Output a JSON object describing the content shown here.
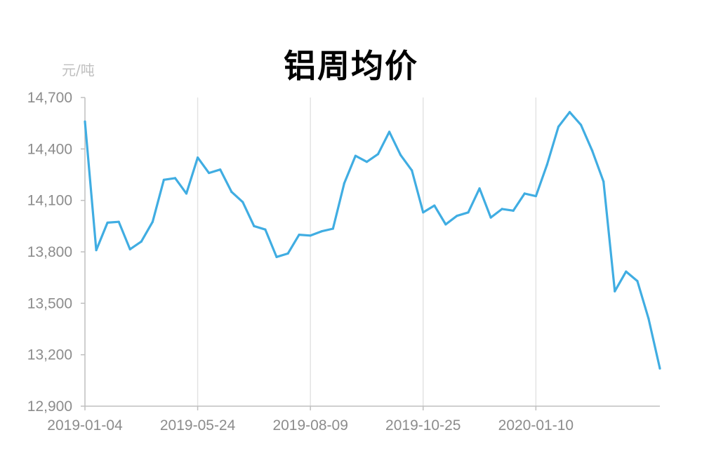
{
  "chart_data": {
    "type": "line",
    "title": "铝周均价",
    "unit_label": "元/吨",
    "x_tick_labels": [
      "2019-01-04",
      "2019-05-24",
      "2019-08-09",
      "2019-10-25",
      "2020-01-10"
    ],
    "y_tick_labels": [
      "12,900",
      "13,200",
      "13,500",
      "13,800",
      "14,100",
      "14,400",
      "14,700"
    ],
    "ylim": [
      12900,
      14700
    ],
    "grid": "vertical",
    "line_color": "#40ade2",
    "series": [
      {
        "values": [
          14560,
          13810,
          13970,
          13975,
          13815,
          13860,
          13975,
          14220,
          14230,
          14140,
          14350,
          14260,
          14280,
          14150,
          14090,
          13950,
          13930,
          13770,
          13790,
          13900,
          13895,
          13920,
          13935,
          14200,
          14360,
          14325,
          14370,
          14500,
          14365,
          14275,
          14030,
          14070,
          13960,
          14010,
          14030,
          14170,
          14000,
          14050,
          14040,
          14140,
          14125,
          14310,
          14530,
          14615,
          14540,
          14390,
          14210,
          13570,
          13685,
          13630,
          13410,
          13120
        ]
      }
    ]
  }
}
